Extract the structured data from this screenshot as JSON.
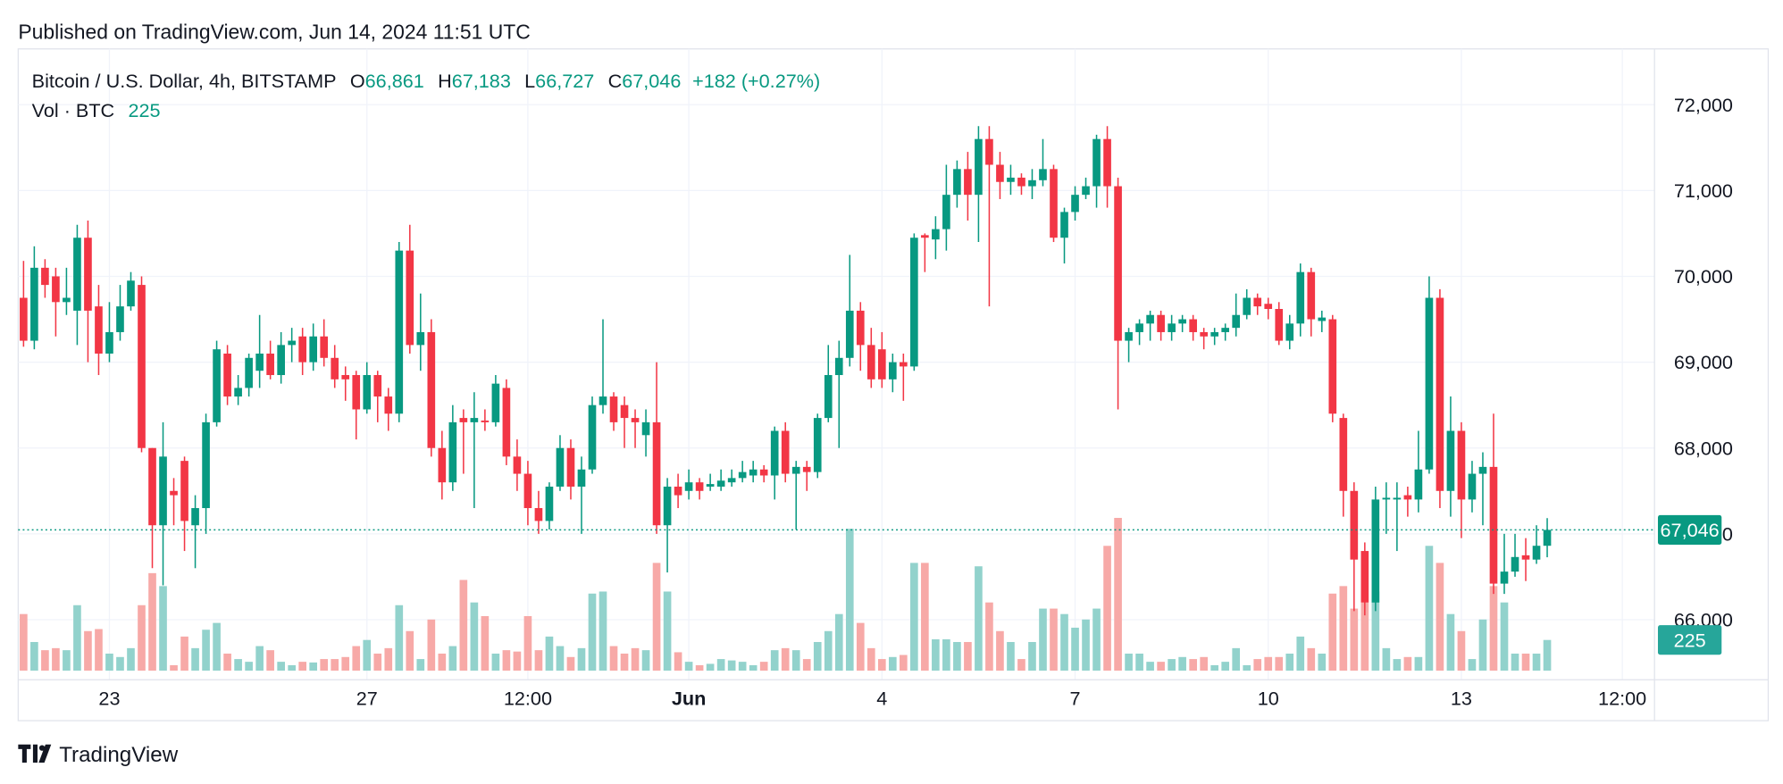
{
  "header": "Published on TradingView.com, Jun 14, 2024 11:51 UTC",
  "legend": {
    "symbol": "Bitcoin / U.S. Dollar, 4h, BITSTAMP",
    "ohlc": [
      {
        "key": "O",
        "value": "66,861"
      },
      {
        "key": "H",
        "value": "67,183"
      },
      {
        "key": "L",
        "value": "66,727"
      },
      {
        "key": "C",
        "value": "67,046"
      }
    ],
    "change": "+182 (+0.27%)",
    "volume_name": "Vol · BTC",
    "volume_value": "225"
  },
  "footer": {
    "brand": "TradingView"
  },
  "chart_data": {
    "type": "candlestick",
    "up_color": "#089981",
    "down_color": "#f23645",
    "volume_up_color": "#92d2cc",
    "volume_down_color": "#f7a9a7",
    "grid": true,
    "xlim": [
      -0.5,
      152
    ],
    "xticks": [
      {
        "value": 8,
        "label": "23"
      },
      {
        "value": 32,
        "label": "27"
      },
      {
        "value": 47,
        "label": "12:00"
      },
      {
        "value": 62,
        "label": "Jun"
      },
      {
        "value": 80,
        "label": "4"
      },
      {
        "value": 98,
        "label": "7"
      },
      {
        "value": 116,
        "label": "10"
      },
      {
        "value": 134,
        "label": "13"
      },
      {
        "value": 149,
        "label": "12:00"
      }
    ],
    "ylim": [
      65300,
      72650
    ],
    "yticks": [
      {
        "value": 66000,
        "label": "66,000"
      },
      {
        "value": 67000,
        "label": "67,000"
      },
      {
        "value": 68000,
        "label": "68,000"
      },
      {
        "value": 69000,
        "label": "69,000"
      },
      {
        "value": 70000,
        "label": "70,000"
      },
      {
        "value": 71000,
        "label": "71,000"
      },
      {
        "value": 72000,
        "label": "72,000"
      }
    ],
    "volume_ylim": [
      0,
      1300
    ],
    "open": [
      69750,
      69250,
      70100,
      70000,
      69700,
      69600,
      70450,
      69650,
      69100,
      69350,
      69650,
      69900,
      68000,
      67100,
      67500,
      67850,
      67100,
      67300,
      68300,
      69100,
      68600,
      68700,
      68900,
      69100,
      68850,
      69200,
      69300,
      69000,
      69300,
      69050,
      68850,
      68850,
      68450,
      68850,
      68600,
      68400,
      70300,
      69200,
      69350,
      68000,
      67600,
      68350,
      68300,
      68320,
      68300,
      68700,
      67900,
      67700,
      67300,
      67150,
      67550,
      68000,
      67550,
      67750,
      68500,
      68600,
      68500,
      68350,
      68150,
      68300,
      67100,
      67550,
      67500,
      67600,
      67550,
      67550,
      67600,
      67650,
      67680,
      67750,
      67680,
      68200,
      67700,
      67780,
      67720,
      68350,
      68850,
      69050,
      69600,
      69200,
      69150,
      68800,
      69000,
      68950,
      70480,
      70430,
      70550,
      70950,
      71250,
      70950,
      71600,
      71300,
      71100,
      71150,
      71050,
      71120,
      71250,
      70450,
      70750,
      70950,
      71050,
      71600,
      71050,
      69250,
      69350,
      69450,
      69550,
      69350,
      69450,
      69500,
      69350,
      69300,
      69350,
      69400,
      69550,
      69750,
      69680,
      69620,
      69250,
      69450,
      70050,
      69480,
      69500,
      68350,
      67500,
      66800,
      66200,
      67400,
      67400,
      67450,
      67400,
      67750,
      69750,
      67500,
      68200,
      67400,
      67700,
      67780,
      66420,
      66560,
      66750,
      66700,
      66861
    ],
    "high": [
      70180,
      70350,
      70200,
      70100,
      70100,
      70600,
      70650,
      69900,
      69700,
      69900,
      70050,
      70000,
      68000,
      68300,
      67650,
      67900,
      67450,
      68400,
      69250,
      69200,
      68850,
      69100,
      69550,
      69250,
      69350,
      69400,
      69400,
      69450,
      69500,
      69200,
      68950,
      68900,
      69000,
      68900,
      68700,
      70400,
      70600,
      69800,
      69500,
      68200,
      68500,
      68450,
      68650,
      68450,
      68850,
      68800,
      68100,
      67850,
      67500,
      67600,
      68150,
      68100,
      67900,
      68600,
      69500,
      68650,
      68600,
      68450,
      68450,
      69000,
      67650,
      67700,
      67750,
      67650,
      67700,
      67750,
      67750,
      67850,
      67850,
      67800,
      68250,
      68300,
      67850,
      67850,
      68400,
      69200,
      69250,
      70250,
      69700,
      69400,
      69350,
      69100,
      69100,
      70500,
      70500,
      70700,
      71300,
      71350,
      71450,
      71750,
      71750,
      71450,
      71300,
      71200,
      71250,
      71600,
      71300,
      70800,
      71050,
      71150,
      71650,
      71750,
      71150,
      69400,
      69500,
      69600,
      69600,
      69550,
      69550,
      69550,
      69400,
      69400,
      69450,
      69800,
      69850,
      69800,
      69750,
      69700,
      69550,
      70150,
      70100,
      69600,
      69550,
      68400,
      67600,
      66900,
      67550,
      67600,
      67600,
      67550,
      68200,
      70000,
      69850,
      68600,
      68300,
      67850,
      67950,
      68400,
      67000,
      67000,
      66950,
      67100,
      67183
    ],
    "low": [
      69180,
      69150,
      69750,
      69300,
      69550,
      69200,
      69000,
      68850,
      69000,
      69250,
      69600,
      67950,
      66600,
      66400,
      67100,
      66800,
      66600,
      67000,
      68250,
      68500,
      68500,
      68600,
      68700,
      68800,
      68750,
      69000,
      68850,
      68900,
      68950,
      68700,
      68550,
      68100,
      68400,
      68300,
      68200,
      68300,
      69100,
      68900,
      67900,
      67400,
      67500,
      67700,
      67300,
      68200,
      68250,
      67800,
      67500,
      67100,
      67000,
      67050,
      67500,
      67400,
      67000,
      67700,
      68400,
      68200,
      68000,
      68000,
      67900,
      67000,
      66550,
      67300,
      67400,
      67400,
      67500,
      67500,
      67550,
      67600,
      67600,
      67600,
      67400,
      67600,
      67050,
      67500,
      67650,
      68300,
      68000,
      68950,
      68900,
      68700,
      68700,
      68650,
      68550,
      68900,
      70050,
      70200,
      70300,
      70800,
      70650,
      70400,
      69650,
      70900,
      70950,
      70950,
      70900,
      71050,
      70400,
      70150,
      70650,
      70900,
      70800,
      70800,
      68450,
      69000,
      69200,
      69250,
      69250,
      69250,
      69350,
      69250,
      69150,
      69200,
      69250,
      69300,
      69500,
      69550,
      69500,
      69200,
      69150,
      69300,
      69300,
      69350,
      68300,
      67200,
      66100,
      66050,
      66100,
      67000,
      66800,
      67200,
      67250,
      67700,
      67300,
      67200,
      66950,
      67250,
      67100,
      66300,
      66300,
      66500,
      66450,
      66650,
      66727
    ],
    "close": [
      69250,
      70100,
      69900,
      69700,
      69750,
      70450,
      69600,
      69100,
      69350,
      69650,
      69950,
      68000,
      67100,
      67900,
      67450,
      67150,
      67300,
      68300,
      69150,
      68600,
      68700,
      69050,
      69100,
      68850,
      69200,
      69250,
      69000,
      69300,
      69050,
      68800,
      68800,
      68450,
      68850,
      68600,
      68400,
      70300,
      69200,
      69350,
      68000,
      67600,
      68300,
      68300,
      68350,
      68300,
      68750,
      67900,
      67700,
      67300,
      67150,
      67550,
      68000,
      67550,
      67750,
      68500,
      68600,
      68300,
      68350,
      68300,
      68300,
      67100,
      67550,
      67450,
      67600,
      67500,
      67580,
      67620,
      67650,
      67720,
      67750,
      67680,
      68200,
      67700,
      67780,
      67720,
      68350,
      68850,
      69050,
      69600,
      69200,
      68800,
      68800,
      69000,
      68950,
      70450,
      70450,
      70550,
      70950,
      71250,
      70950,
      71600,
      71300,
      71100,
      71150,
      71050,
      71120,
      71250,
      70450,
      70750,
      70950,
      71050,
      71600,
      71050,
      69250,
      69350,
      69450,
      69550,
      69350,
      69450,
      69500,
      69350,
      69300,
      69350,
      69400,
      69550,
      69750,
      69650,
      69620,
      69250,
      69450,
      70050,
      69500,
      69520,
      68400,
      67500,
      66700,
      66200,
      67400,
      67420,
      67420,
      67400,
      67750,
      69750,
      67500,
      68200,
      67400,
      67700,
      67780,
      66420,
      66560,
      66730,
      66700,
      66861,
      67046
    ],
    "volume": [
      415,
      210,
      150,
      165,
      150,
      480,
      290,
      305,
      125,
      100,
      165,
      480,
      715,
      620,
      40,
      250,
      165,
      300,
      350,
      125,
      85,
      65,
      180,
      150,
      65,
      40,
      65,
      60,
      85,
      85,
      100,
      180,
      225,
      125,
      165,
      480,
      290,
      85,
      375,
      125,
      180,
      665,
      500,
      400,
      125,
      150,
      140,
      400,
      150,
      250,
      180,
      100,
      165,
      565,
      580,
      180,
      125,
      165,
      150,
      790,
      580,
      135,
      65,
      40,
      50,
      85,
      75,
      65,
      40,
      65,
      150,
      165,
      150,
      85,
      210,
      290,
      415,
      1040,
      350,
      165,
      85,
      100,
      115,
      790,
      790,
      230,
      230,
      210,
      210,
      765,
      500,
      290,
      210,
      85,
      210,
      455,
      455,
      415,
      315,
      375,
      455,
      915,
      1120,
      125,
      125,
      65,
      65,
      85,
      100,
      85,
      100,
      40,
      65,
      165,
      40,
      85,
      100,
      100,
      125,
      250,
      165,
      125,
      565,
      620,
      455,
      500,
      580,
      165,
      85,
      100,
      100,
      915,
      790,
      415,
      290,
      85,
      375,
      620,
      500,
      125,
      125,
      125,
      225
    ]
  }
}
